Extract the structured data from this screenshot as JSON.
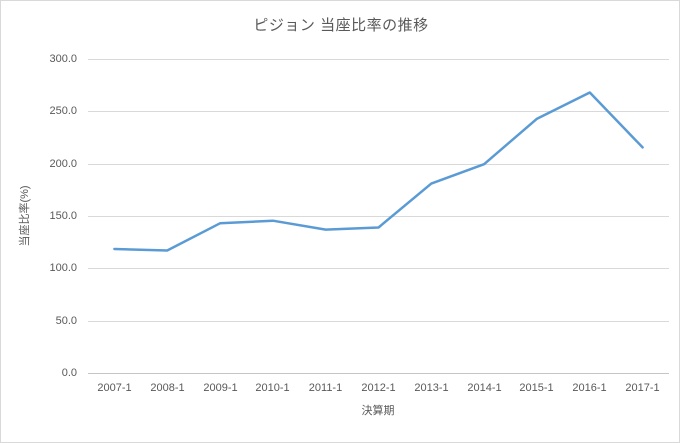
{
  "chart": {
    "title": "ピジョン 当座比率の推移",
    "x_axis_title": "決算期",
    "y_axis_title": "当座比率(%)"
  },
  "chart_data": {
    "type": "line",
    "title": "ピジョン 当座比率の推移",
    "xlabel": "決算期",
    "ylabel": "当座比率(%)",
    "categories": [
      "2007-1",
      "2008-1",
      "2009-1",
      "2010-1",
      "2011-1",
      "2012-1",
      "2013-1",
      "2014-1",
      "2015-1",
      "2016-1",
      "2017-1"
    ],
    "values": [
      118.5,
      117.0,
      143.0,
      145.5,
      137.0,
      139.0,
      181.0,
      199.5,
      243.0,
      268.0,
      215.5
    ],
    "ylim": [
      0,
      300
    ],
    "ytick_interval": 50,
    "ytick_labels_top_down": [
      "300.0",
      "250.0",
      "200.0",
      "150.0",
      "100.0",
      "50.0",
      "0.0"
    ],
    "grid": true,
    "legend": false,
    "line_color": "#5B9BD5"
  },
  "colors": {
    "line": "#5B9BD5",
    "text": "#595959",
    "gridline": "#D9D9D9",
    "axis_line": "#C6C6C6",
    "background": "#FFFFFF",
    "border": "#D9D9D9"
  }
}
